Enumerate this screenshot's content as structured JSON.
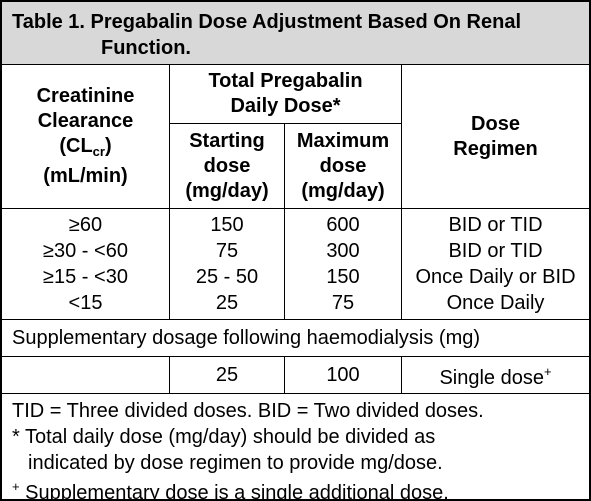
{
  "header": {
    "title": "Table 1. Pregabalin Dose Adjustment Based On Renal Function."
  },
  "columns": {
    "clearance": {
      "line1": "Creatinine",
      "line2": "Clearance",
      "symbol": "(CL",
      "subscript": "cr",
      "symbol_end": ")",
      "unit": "(mL/min)"
    },
    "total_dose": {
      "label": "Total Pregabalin Daily Dose*"
    },
    "starting": {
      "line1": "Starting",
      "line2": "dose",
      "line3": "(mg/day)"
    },
    "maximum": {
      "line1": "Maximum",
      "line2": "dose",
      "line3": "(mg/day)"
    },
    "regimen": {
      "line1": "Dose",
      "line2": "Regimen"
    }
  },
  "rows": [
    [
      "≥60",
      "150",
      "600",
      "BID or TID"
    ],
    [
      "≥30 - <60",
      "75",
      "300",
      "BID or TID"
    ],
    [
      "≥15 - <30",
      "25 - 50",
      "150",
      "Once Daily or BID"
    ],
    [
      "<15",
      "25",
      "75",
      "Once Daily"
    ]
  ],
  "supplementary": {
    "label": "Supplementary dosage following haemodialysis (mg)",
    "starting": "25",
    "maximum": "100",
    "regimen": "Single dose",
    "regimen_mark": "+"
  },
  "footnotes": {
    "abbreviations": "TID = Three divided doses. BID = Two divided doses.",
    "total": {
      "mark": "*",
      "line1": "Total daily dose (mg/day) should be divided as",
      "line2": "indicated by dose regimen to provide mg/dose."
    },
    "supplementary": {
      "mark": "+",
      "text": "Supplementary dose is a single additional dose."
    }
  }
}
